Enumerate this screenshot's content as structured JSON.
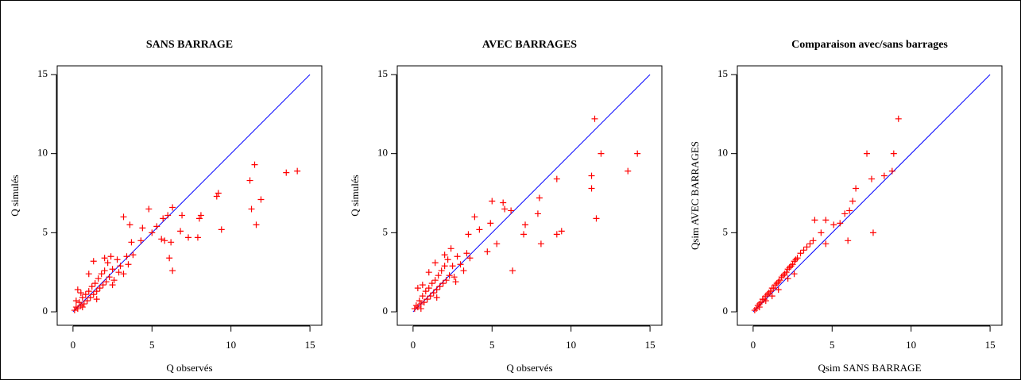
{
  "chart_data": [
    {
      "type": "scatter",
      "title": "SANS BARRAGE",
      "x_label": "Q observés",
      "y_label": "Q simulés",
      "color": "#ff0000",
      "xlim": [
        -1,
        15.75
      ],
      "ylim": [
        -0.85,
        15.55
      ],
      "xticks": [
        0,
        5,
        10,
        15
      ],
      "yticks": [
        0,
        5,
        10,
        15
      ],
      "x": [
        14.2,
        13.5,
        11.5,
        11.2,
        11.3,
        11.6,
        11.9,
        9.2,
        9.1,
        9.4,
        8.1,
        8.0,
        7.9,
        7.3,
        6.8,
        6.9,
        6.3,
        6.0,
        5.7,
        6.2,
        6.1,
        6.3,
        5.8,
        5.6,
        4.8,
        3.2,
        4.4,
        3.6,
        4.3,
        3.7,
        5.0,
        5.3,
        0.1,
        0.2,
        0.3,
        0.4,
        0.5,
        0.6,
        0.7,
        0.8,
        0.9,
        1.0,
        1.1,
        1.2,
        1.3,
        1.4,
        1.5,
        1.6,
        1.7,
        1.8,
        1.9,
        2.0,
        2.1,
        2.2,
        2.3,
        2.5,
        2.6,
        2.8,
        2.9,
        3.0,
        3.2,
        3.4,
        3.5,
        3.8,
        0.3,
        0.5,
        1.0,
        1.3,
        2.0,
        2.4,
        0.2,
        0.6,
        1.5,
        2.5
      ],
      "values": [
        8.9,
        8.8,
        9.3,
        8.3,
        6.5,
        5.5,
        7.1,
        7.5,
        7.3,
        5.2,
        6.1,
        5.9,
        4.7,
        4.7,
        5.1,
        6.1,
        6.6,
        6.1,
        5.9,
        4.4,
        3.4,
        2.6,
        4.5,
        4.6,
        6.5,
        6.0,
        5.3,
        5.5,
        4.5,
        4.4,
        5.0,
        5.4,
        0.1,
        0.3,
        0.2,
        0.6,
        0.4,
        0.9,
        0.5,
        1.1,
        0.7,
        1.3,
        0.9,
        1.6,
        1.1,
        1.8,
        1.3,
        2.1,
        1.5,
        2.4,
        1.7,
        2.6,
        1.9,
        3.1,
        2.2,
        2.7,
        2.0,
        3.3,
        2.5,
        2.9,
        2.4,
        3.5,
        3.0,
        3.6,
        1.4,
        1.2,
        2.4,
        3.2,
        3.4,
        3.5,
        0.7,
        0.3,
        0.8,
        1.7
      ],
      "reference_line": {
        "x": [
          0,
          15
        ],
        "values": [
          0,
          15
        ],
        "color": "#0000ff"
      }
    },
    {
      "type": "scatter",
      "title": "AVEC BARRAGES",
      "x_label": "Q observés",
      "y_label": "Q simulés",
      "color": "#ff0000",
      "xlim": [
        -1,
        15.75
      ],
      "ylim": [
        -0.85,
        15.55
      ],
      "xticks": [
        0,
        5,
        10,
        15
      ],
      "yticks": [
        0,
        5,
        10,
        15
      ],
      "x": [
        11.5,
        11.9,
        14.2,
        13.6,
        11.3,
        11.3,
        11.6,
        9.1,
        9.4,
        9.1,
        8.0,
        7.9,
        8.1,
        7.1,
        7.0,
        6.2,
        5.8,
        5.7,
        6.3,
        5.0,
        3.9,
        4.9,
        4.2,
        3.5,
        5.3,
        4.7,
        0.1,
        0.2,
        0.3,
        0.4,
        0.5,
        0.6,
        0.7,
        0.8,
        0.9,
        1.0,
        1.1,
        1.2,
        1.3,
        1.4,
        1.5,
        1.6,
        1.7,
        1.8,
        1.9,
        2.0,
        2.1,
        2.2,
        2.3,
        2.5,
        2.6,
        2.8,
        3.0,
        3.2,
        3.4,
        3.6,
        0.3,
        0.6,
        1.0,
        1.4,
        2.0,
        2.4,
        0.5,
        1.5,
        2.7
      ],
      "values": [
        12.2,
        10.0,
        10.0,
        8.9,
        8.6,
        7.8,
        5.9,
        8.4,
        5.1,
        4.9,
        7.2,
        6.2,
        4.3,
        5.5,
        4.9,
        6.4,
        6.5,
        6.9,
        2.6,
        7.0,
        6.0,
        5.6,
        5.2,
        4.9,
        4.3,
        3.8,
        0.2,
        0.4,
        0.3,
        0.7,
        0.5,
        1.0,
        0.6,
        1.3,
        0.8,
        1.5,
        1.0,
        1.8,
        1.2,
        2.0,
        1.4,
        2.3,
        1.6,
        2.6,
        1.8,
        2.9,
        2.0,
        3.3,
        2.3,
        2.9,
        2.2,
        3.5,
        3.0,
        2.6,
        3.7,
        3.4,
        1.5,
        1.7,
        2.5,
        3.1,
        3.6,
        4.0,
        0.2,
        0.9,
        1.9
      ],
      "reference_line": {
        "x": [
          0,
          15
        ],
        "values": [
          0,
          15
        ],
        "color": "#0000ff"
      }
    },
    {
      "type": "scatter",
      "title": "Comparaison avec/sans barrages",
      "x_label": "Qsim SANS BARRAGE",
      "y_label": "Qsim AVEC BARRAGES",
      "color": "#ff0000",
      "xlim": [
        -1,
        15.75
      ],
      "ylim": [
        -0.85,
        15.55
      ],
      "xticks": [
        0,
        5,
        10,
        15
      ],
      "yticks": [
        0,
        5,
        10,
        15
      ],
      "x": [
        9.2,
        8.9,
        7.2,
        8.3,
        8.8,
        7.5,
        7.6,
        6.5,
        6.3,
        6.1,
        6.0,
        5.8,
        5.5,
        5.1,
        4.6,
        3.9,
        4.6,
        4.3,
        3.8,
        0.1,
        0.2,
        0.3,
        0.4,
        0.5,
        0.6,
        0.7,
        0.8,
        0.9,
        1.0,
        1.1,
        1.2,
        1.3,
        1.4,
        1.5,
        1.6,
        1.7,
        1.8,
        1.9,
        2.0,
        2.1,
        2.2,
        2.3,
        2.4,
        2.5,
        2.6,
        2.7,
        2.8,
        3.0,
        3.2,
        3.4,
        3.6,
        0.4,
        0.8,
        1.2,
        1.6,
        2.2,
        2.6
      ],
      "values": [
        12.2,
        10.0,
        10.0,
        8.6,
        8.9,
        8.4,
        5.0,
        7.8,
        7.0,
        6.4,
        4.5,
        6.2,
        5.6,
        5.5,
        5.8,
        5.8,
        4.3,
        5.0,
        4.5,
        0.1,
        0.2,
        0.4,
        0.5,
        0.6,
        0.8,
        0.8,
        1.0,
        1.1,
        1.2,
        1.3,
        1.5,
        1.5,
        1.7,
        1.8,
        1.9,
        2.0,
        2.2,
        2.3,
        2.4,
        2.5,
        2.7,
        2.8,
        2.9,
        3.0,
        3.2,
        3.3,
        3.4,
        3.7,
        3.9,
        4.1,
        4.3,
        0.3,
        0.7,
        1.0,
        1.4,
        2.1,
        2.4
      ],
      "reference_line": {
        "x": [
          0,
          15
        ],
        "values": [
          0,
          15
        ],
        "color": "#0000ff"
      }
    }
  ]
}
